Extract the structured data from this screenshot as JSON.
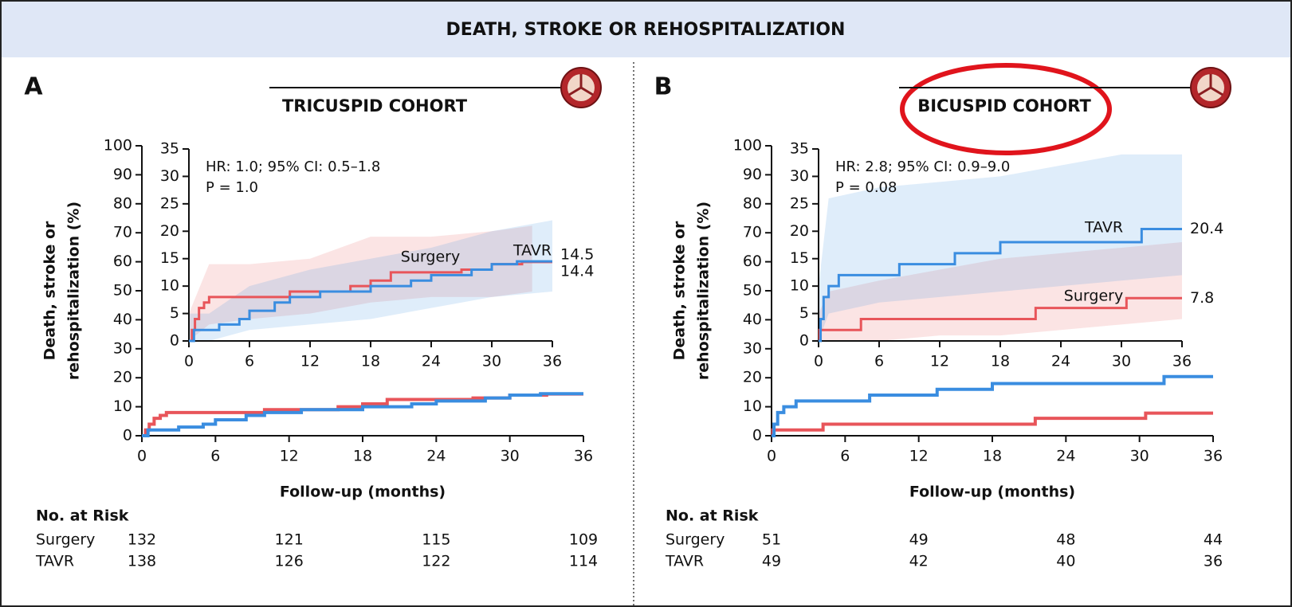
{
  "header": {
    "title": "DEATH, STROKE OR REHOSPITALIZATION"
  },
  "chart_data": [
    {
      "type": "line",
      "panel": "A",
      "title": "TRICUSPID COHORT",
      "xlabel": "Follow-up (months)",
      "ylabel": [
        "Death, stroke or",
        "rehospitalization (%)"
      ],
      "xlim": [
        0,
        36
      ],
      "ylim": [
        0,
        100
      ],
      "xticks": [
        0,
        6,
        12,
        18,
        24,
        30,
        36
      ],
      "yticks": [
        0,
        10,
        20,
        30,
        40,
        50,
        60,
        70,
        80,
        90,
        100
      ],
      "series": [
        {
          "name": "Surgery",
          "color": "#e8555a",
          "x": [
            0,
            0.3,
            0.3,
            0.6,
            0.6,
            1,
            1,
            1.5,
            1.5,
            2,
            2,
            10,
            10,
            16,
            16,
            18,
            18,
            20,
            20,
            27,
            27,
            30,
            30,
            33,
            33,
            36
          ],
          "values": [
            0,
            0,
            2,
            2,
            4,
            4,
            6,
            6,
            7,
            7,
            8,
            8,
            9,
            9,
            10,
            10,
            11,
            11,
            12.5,
            12.5,
            13,
            13,
            14,
            14,
            14.4,
            14.4
          ],
          "ci": {
            "x": [
              0,
              2,
              6,
              12,
              18,
              24,
              30,
              34
            ],
            "lower": [
              0,
              3,
              4,
              5,
              7,
              8,
              8,
              9
            ],
            "upper": [
              5,
              14,
              14,
              15,
              19,
              19,
              20,
              21
            ]
          }
        },
        {
          "name": "TAVR",
          "color": "#3a8de0",
          "x": [
            0,
            0.5,
            0.5,
            3,
            3,
            5,
            5,
            6,
            6,
            8.5,
            8.5,
            10,
            10,
            13,
            13,
            18,
            18,
            22,
            22,
            24,
            24,
            28,
            28,
            30,
            30,
            32.5,
            32.5,
            36
          ],
          "values": [
            0,
            0,
            2,
            2,
            3,
            3,
            4,
            4,
            5.5,
            5.5,
            7,
            7,
            8,
            8,
            9,
            9,
            10,
            10,
            11,
            11,
            12,
            12,
            13,
            13,
            14,
            14,
            14.5,
            14.5
          ],
          "ci": {
            "x": [
              0,
              2,
              6,
              12,
              18,
              24,
              30,
              36
            ],
            "lower": [
              0,
              0,
              2,
              3,
              4,
              6,
              8,
              9
            ],
            "upper": [
              5,
              5,
              10,
              13,
              15,
              17,
              20,
              22
            ]
          }
        }
      ],
      "inset": {
        "xlim": [
          0,
          36
        ],
        "ylim": [
          0,
          35
        ],
        "xticks": [
          0,
          6,
          12,
          18,
          24,
          30,
          36
        ],
        "yticks": [
          0,
          5,
          10,
          15,
          20,
          25,
          30,
          35
        ],
        "annotations": [
          "HR: 1.0; 95% CI: 0.5–1.8",
          "P = 1.0"
        ]
      },
      "risk_table": {
        "title": "No. at Risk",
        "rows": [
          {
            "name": "Surgery",
            "values": [
              132,
              121,
              115,
              109
            ]
          },
          {
            "name": "TAVR",
            "values": [
              138,
              126,
              122,
              114
            ]
          }
        ]
      }
    },
    {
      "type": "line",
      "panel": "B",
      "title": "BICUSPID COHORT",
      "xlabel": "Follow-up (months)",
      "ylabel": [
        "Death, stroke or",
        "rehospitalization (%)"
      ],
      "xlim": [
        0,
        36
      ],
      "ylim": [
        0,
        100
      ],
      "xticks": [
        0,
        6,
        12,
        18,
        24,
        30,
        36
      ],
      "yticks": [
        0,
        10,
        20,
        30,
        40,
        50,
        60,
        70,
        80,
        90,
        100
      ],
      "series": [
        {
          "name": "Surgery",
          "color": "#e8555a",
          "x": [
            0,
            0.1,
            0.1,
            4.2,
            4.2,
            21.5,
            21.5,
            30.5,
            30.5,
            36
          ],
          "values": [
            0,
            0,
            2,
            2,
            4,
            4,
            6,
            6,
            7.8,
            7.8
          ],
          "ci": {
            "x": [
              0,
              1,
              6,
              12,
              18,
              24,
              30,
              36
            ],
            "lower": [
              0,
              0,
              0,
              1,
              1,
              2,
              3,
              4
            ],
            "upper": [
              5,
              9,
              11,
              13,
              15,
              16,
              17,
              18
            ]
          }
        },
        {
          "name": "TAVR",
          "color": "#3a8de0",
          "x": [
            0,
            0.2,
            0.2,
            0.5,
            0.5,
            1,
            1,
            2,
            2,
            8,
            8,
            13.5,
            13.5,
            18,
            18,
            32,
            32,
            36
          ],
          "values": [
            0,
            0,
            4,
            4,
            8,
            8,
            10,
            10,
            12,
            12,
            14,
            14,
            16,
            16,
            18,
            18,
            20.4,
            20.4
          ],
          "ci": {
            "x": [
              0,
              1,
              6,
              12,
              18,
              24,
              30,
              36
            ],
            "lower": [
              0,
              5,
              7,
              8,
              9,
              10,
              11,
              12
            ],
            "upper": [
              10,
              26,
              28,
              29,
              30,
              32,
              34,
              34
            ]
          }
        }
      ],
      "inset": {
        "xlim": [
          0,
          36
        ],
        "ylim": [
          0,
          35
        ],
        "xticks": [
          0,
          6,
          12,
          18,
          24,
          30,
          36
        ],
        "yticks": [
          0,
          5,
          10,
          15,
          20,
          25,
          30,
          35
        ],
        "annotations": [
          "HR: 2.8; 95% CI: 0.9–9.0",
          "P = 0.08"
        ]
      },
      "risk_table": {
        "title": "No. at Risk",
        "rows": [
          {
            "name": "Surgery",
            "values": [
              51,
              49,
              48,
              44
            ]
          },
          {
            "name": "TAVR",
            "values": [
              49,
              42,
              40,
              36
            ]
          }
        ]
      }
    }
  ]
}
